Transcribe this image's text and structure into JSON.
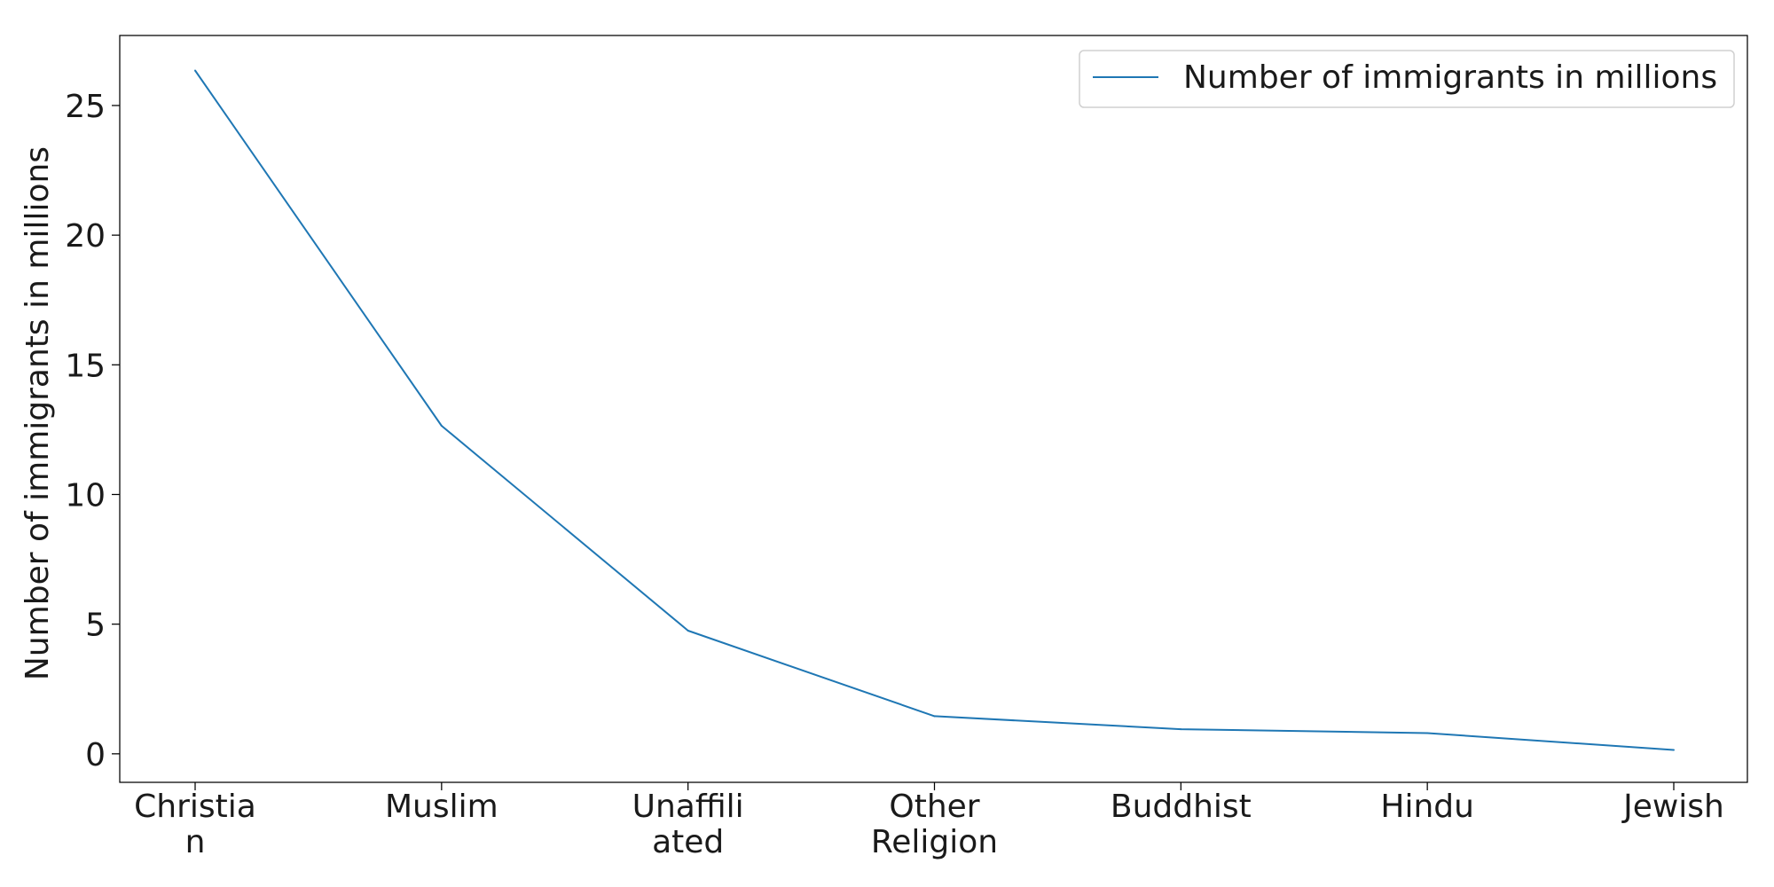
{
  "chart_data": {
    "type": "line",
    "categories": [
      "Christian",
      "Muslim",
      "Unaffiliated",
      "Other Religion",
      "Buddhist",
      "Hindu",
      "Jewish"
    ],
    "category_display": [
      [
        "Christia",
        "n"
      ],
      [
        "Muslim"
      ],
      [
        "Unaffili",
        "ated"
      ],
      [
        "Other",
        "Religion"
      ],
      [
        "Buddhist"
      ],
      [
        "Hindu"
      ],
      [
        "Jewish"
      ]
    ],
    "series": [
      {
        "name": "Number of immigrants in millions",
        "values": [
          26.35,
          12.65,
          4.75,
          1.45,
          0.95,
          0.8,
          0.15
        ],
        "color": "#1f77b4"
      }
    ],
    "title": "",
    "xlabel": "",
    "ylabel": "Number of immigrants in millions",
    "ylim": [
      -1.1,
      27.7
    ],
    "yticks": [
      0,
      5,
      10,
      15,
      20,
      25
    ],
    "grid": false,
    "legend_position": "top-right"
  }
}
